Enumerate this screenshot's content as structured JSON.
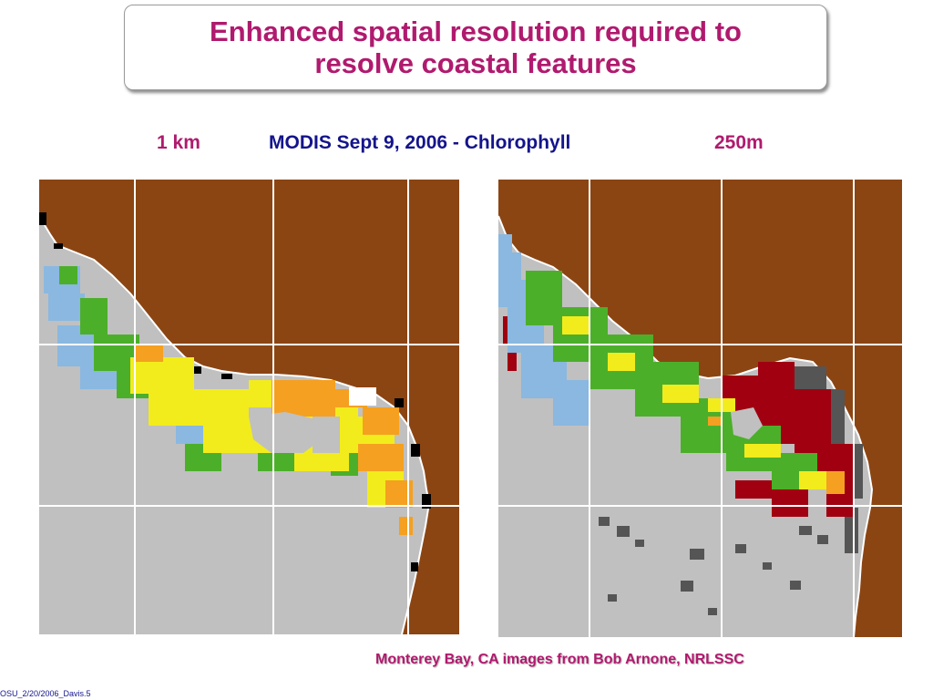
{
  "slide": {
    "title_lines": [
      "Enhanced spatial resolution required to",
      "resolve coastal features"
    ],
    "captions": {
      "left_resolution": "1 km",
      "center": "MODIS  Sept 9, 2006 - Chlorophyll",
      "right_resolution": "250m"
    },
    "credit": "Monterey Bay, CA images from Bob Arnone, NRLSSC",
    "footer": "OSU_2/20/2006_Davis.5"
  },
  "colors": {
    "title": "#b01a6e",
    "caption_center": "#14148c",
    "land": "#8b4513",
    "sea_no_data": "#c0c0c0",
    "grid": "#ffffff",
    "low_chl": "#8ab8e0",
    "mid_chl": "#4caf2a",
    "high_chl": "#f2ec1c",
    "very_high_chl": "#f5a020",
    "extreme_chl": "#a00010",
    "cloud": "#555555"
  },
  "images": [
    {
      "name": "modis-1km-chlorophyll-map",
      "resolution": "1 km"
    },
    {
      "name": "modis-250m-chlorophyll-map",
      "resolution": "250m"
    }
  ]
}
